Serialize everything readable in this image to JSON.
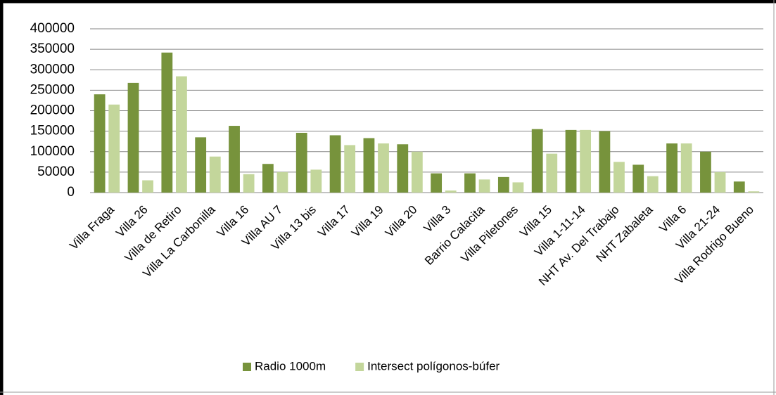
{
  "chart_data": {
    "type": "bar",
    "categories": [
      "Villa Fraga",
      "Villa 26",
      "Villa de Retiro",
      "Villa La Carbonilla",
      "Villa 16",
      "Villa AU 7",
      "Villa 13 bis",
      "Villa 17",
      "Villa 19",
      "Villa 20",
      "Villa 3",
      "Barrio Calacita",
      "Villa Piletones",
      "Villa 15",
      "Villa 1-11-14",
      "NHT Av. Del Trabajo",
      "NHT Zabaleta",
      "Villa 6",
      "Villa 21-24",
      "Villa Rodrigo Bueno"
    ],
    "series": [
      {
        "name": "Radio 1000m",
        "color": "#77933c",
        "values": [
          240000,
          268000,
          342000,
          135000,
          163000,
          70000,
          146000,
          140000,
          133000,
          118000,
          47000,
          47000,
          38000,
          155000,
          153000,
          150000,
          68000,
          120000,
          100000,
          27000
        ]
      },
      {
        "name": "Intersect polígonos-búfer",
        "color": "#c3d69b",
        "values": [
          215000,
          30000,
          284000,
          88000,
          45000,
          50000,
          56000,
          116000,
          120000,
          100000,
          5000,
          32000,
          25000,
          95000,
          153000,
          75000,
          40000,
          120000,
          50000,
          3000
        ]
      }
    ],
    "ylim": [
      0,
      400000
    ],
    "yticks": [
      0,
      50000,
      100000,
      150000,
      200000,
      250000,
      300000,
      350000,
      400000
    ],
    "grid": true,
    "legend": "bottom"
  }
}
